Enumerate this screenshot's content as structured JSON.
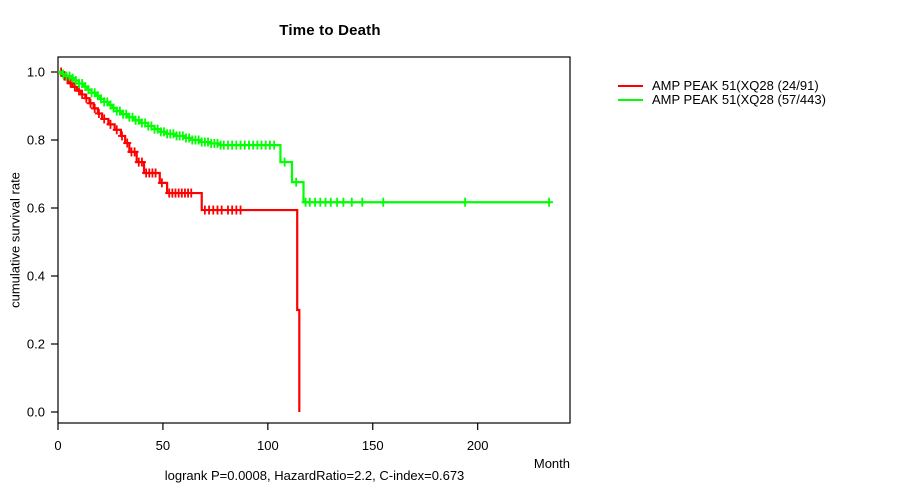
{
  "chart_data": {
    "type": "line",
    "variant": "kaplan-meier-step-curve",
    "title": "Time to Death",
    "xlabel": "Month",
    "ylabel": "cumulative survival rate",
    "footer": "logrank P=0.0008, HazardRatio=2.2, C-index=0.673",
    "grid": "off",
    "legend_position": "right-outside",
    "x_axis": {
      "min": 0,
      "max": 244,
      "ticks": [
        {
          "value": 0,
          "label": "0"
        },
        {
          "value": 50,
          "label": "50"
        },
        {
          "value": 100,
          "label": "100"
        },
        {
          "value": 150,
          "label": "150"
        },
        {
          "value": 200,
          "label": "200"
        }
      ]
    },
    "y_axis": {
      "min": 0,
      "max": 1,
      "ticks": [
        {
          "value": 0.0,
          "label": "0.0"
        },
        {
          "value": 0.2,
          "label": "0.2"
        },
        {
          "value": 0.4,
          "label": "0.4"
        },
        {
          "value": 0.6,
          "label": "0.6"
        },
        {
          "value": 0.8,
          "label": "0.8"
        },
        {
          "value": 1.0,
          "label": "1.0"
        }
      ]
    },
    "series": [
      {
        "name": "xq28-amplified",
        "label": "AMP PEAK 51(XQ28 (24/91)",
        "color": "#ff0000",
        "end_month": 115,
        "steps": [
          [
            0,
            1.0
          ],
          [
            2,
            0.989
          ],
          [
            3.5,
            0.978
          ],
          [
            5,
            0.967
          ],
          [
            7,
            0.956
          ],
          [
            9,
            0.945
          ],
          [
            11,
            0.934
          ],
          [
            13,
            0.923
          ],
          [
            15,
            0.908
          ],
          [
            17,
            0.893
          ],
          [
            19,
            0.878
          ],
          [
            21,
            0.862
          ],
          [
            24,
            0.846
          ],
          [
            27,
            0.83
          ],
          [
            30,
            0.812
          ],
          [
            32,
            0.791
          ],
          [
            34,
            0.765
          ],
          [
            37.5,
            0.735
          ],
          [
            41,
            0.703
          ],
          [
            48.5,
            0.674
          ],
          [
            52,
            0.644
          ],
          [
            68.5,
            0.594
          ],
          [
            114,
            0.3
          ],
          [
            115,
            0.0
          ]
        ],
        "censor_months": [
          1.5,
          3,
          4.5,
          6,
          8,
          10,
          11.5,
          13.5,
          15.5,
          17.5,
          19.5,
          22,
          25,
          28,
          30.5,
          33,
          35,
          36.5,
          38.5,
          40,
          42,
          43.5,
          45,
          46.5,
          49.5,
          53,
          54.5,
          56,
          57.5,
          59,
          60.5,
          62,
          63.5,
          70,
          72,
          74,
          76,
          78,
          81,
          83,
          85,
          87
        ]
      },
      {
        "name": "xq28-not-amplified",
        "label": "AMP PEAK 51(XQ28 (57/443)",
        "color": "#00ff00",
        "end_month": 235,
        "steps": [
          [
            0,
            1.0
          ],
          [
            2,
            0.994
          ],
          [
            4,
            0.988
          ],
          [
            6,
            0.982
          ],
          [
            8,
            0.975
          ],
          [
            10,
            0.966
          ],
          [
            12,
            0.957
          ],
          [
            14,
            0.948
          ],
          [
            16,
            0.939
          ],
          [
            18,
            0.93
          ],
          [
            20,
            0.921
          ],
          [
            22,
            0.912
          ],
          [
            24,
            0.903
          ],
          [
            26,
            0.894
          ],
          [
            28,
            0.885
          ],
          [
            30,
            0.876
          ],
          [
            33,
            0.867
          ],
          [
            36,
            0.858
          ],
          [
            39,
            0.85
          ],
          [
            43,
            0.841
          ],
          [
            46,
            0.832
          ],
          [
            49,
            0.824
          ],
          [
            52,
            0.818
          ],
          [
            56,
            0.812
          ],
          [
            60,
            0.806
          ],
          [
            64,
            0.8
          ],
          [
            68,
            0.794
          ],
          [
            72,
            0.79
          ],
          [
            77,
            0.785
          ],
          [
            106,
            0.735
          ],
          [
            111.5,
            0.676
          ],
          [
            117,
            0.617
          ]
        ],
        "censor_months": [
          2.5,
          4,
          5.5,
          7,
          8.5,
          10,
          11.5,
          13,
          14.5,
          16,
          17.5,
          19,
          20.5,
          22,
          23.5,
          25,
          26.5,
          28,
          29.5,
          31,
          32.5,
          34,
          35.5,
          37,
          38.5,
          40,
          41.5,
          43,
          44.5,
          46,
          47.5,
          49,
          50.5,
          52,
          53.5,
          55,
          56.5,
          58,
          59.5,
          61,
          62.5,
          64,
          65.5,
          67,
          68.5,
          70,
          71.5,
          73,
          74.5,
          76,
          77.5,
          79,
          81,
          83,
          85,
          87,
          89,
          91,
          93,
          95,
          97,
          99,
          101,
          103,
          108,
          113.5,
          118,
          120,
          122.5,
          125,
          127.5,
          130,
          133,
          136,
          140,
          145,
          155,
          194,
          234
        ]
      }
    ]
  }
}
